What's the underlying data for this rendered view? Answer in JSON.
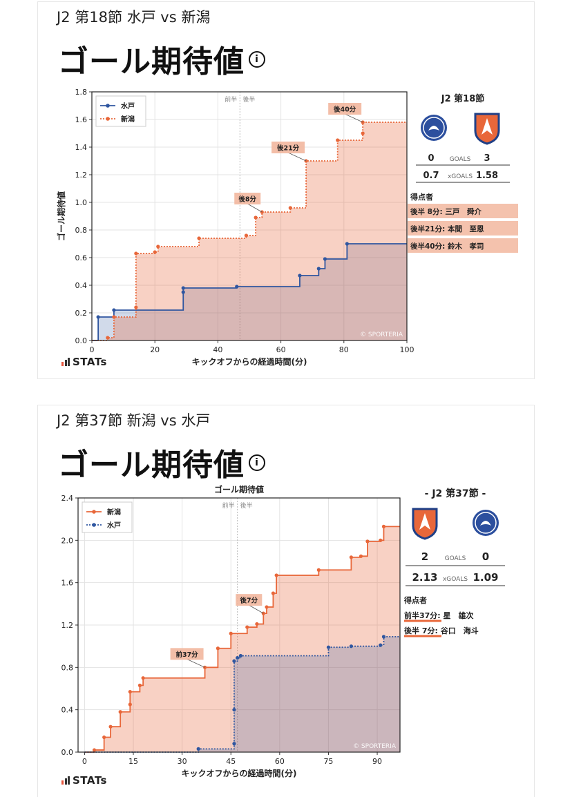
{
  "matches": [
    {
      "match_title": "J2 第18節 水戸 vs 新潟",
      "heading": "ゴール期待値",
      "panel": {
        "round": "J2 第18節",
        "home_goals": "0",
        "away_goals": "3",
        "goals_label": "GOALS",
        "home_xg": "0.7",
        "away_xg": "1.58",
        "xg_label": "xGOALS",
        "scorers_title": "得点者",
        "scorers": [
          "後半  8分: 三戸　舜介",
          "後半21分: 本間　至恩",
          "後半40分: 鈴木　孝司"
        ]
      },
      "stats_label": "STATs",
      "chart_data": {
        "type": "area",
        "title": "",
        "xlabel": "キックオフからの経過時間(分)",
        "ylabel": "ゴール期待値",
        "xlim": [
          0,
          100
        ],
        "ylim": [
          0,
          1.8
        ],
        "xticks": [
          "0",
          "20",
          "40",
          "60",
          "80",
          "100"
        ],
        "yticks": [
          "0.0",
          "0.2",
          "0.4",
          "0.6",
          "0.8",
          "1.0",
          "1.2",
          "1.4",
          "1.6",
          "1.8"
        ],
        "half_labels": [
          "前半",
          "後半"
        ],
        "half_line_x": 47,
        "watermark": "© SPORTERIA",
        "legend_position": "top-left",
        "series": [
          {
            "name": "水戸",
            "color": "#2f56a0",
            "style": "solid",
            "points": [
              [
                2,
                0.17
              ],
              [
                7,
                0.22
              ],
              [
                29,
                0.35
              ],
              [
                29,
                0.38
              ],
              [
                46,
                0.39
              ],
              [
                66,
                0.47
              ],
              [
                72,
                0.52
              ],
              [
                74,
                0.59
              ],
              [
                81,
                0.7
              ]
            ]
          },
          {
            "name": "新潟",
            "color": "#e8673a",
            "style": "dotted",
            "points": [
              [
                5,
                0.02
              ],
              [
                7,
                0.17
              ],
              [
                14,
                0.24
              ],
              [
                14,
                0.63
              ],
              [
                20,
                0.64
              ],
              [
                21,
                0.68
              ],
              [
                34,
                0.74
              ],
              [
                49,
                0.76
              ],
              [
                52,
                0.89
              ],
              [
                54,
                0.93
              ],
              [
                63,
                0.96
              ],
              [
                68,
                1.3
              ],
              [
                78,
                1.45
              ],
              [
                86,
                1.5
              ],
              [
                86,
                1.58
              ]
            ]
          }
        ],
        "annotations": [
          {
            "text": "後8分",
            "x": 54,
            "y": 0.93
          },
          {
            "text": "後21分",
            "x": 68,
            "y": 1.3
          },
          {
            "text": "後40分",
            "x": 86,
            "y": 1.58
          }
        ],
        "x_end": 100
      }
    },
    {
      "match_title": "J2 第37節 新潟 vs 水戸",
      "heading": "ゴール期待値",
      "panel": {
        "round": "- J2 第37節 -",
        "home_goals": "2",
        "away_goals": "0",
        "goals_label": "GOALS",
        "home_xg": "2.13",
        "away_xg": "1.09",
        "xg_label": "xGOALS",
        "scorers_title": "得点者",
        "scorers": [
          "前半37分: 星　雄次",
          "後半  7分: 谷口　海斗"
        ]
      },
      "stats_label": "STATs",
      "chart_data": {
        "type": "area",
        "title": "ゴール期待値",
        "xlabel": "キックオフからの経過時間(分)",
        "ylabel": "",
        "xlim": [
          -2,
          97
        ],
        "ylim": [
          0,
          2.4
        ],
        "xticks": [
          "0",
          "15",
          "30",
          "45",
          "60",
          "75",
          "90"
        ],
        "yticks": [
          "0.0",
          "0.4",
          "0.8",
          "1.2",
          "1.6",
          "2.0",
          "2.4"
        ],
        "half_labels": [
          "前半",
          "後半"
        ],
        "half_line_x": 47,
        "watermark": "© SPORTERIA",
        "legend_position": "top-left",
        "series": [
          {
            "name": "新潟",
            "color": "#e8673a",
            "style": "solid",
            "points": [
              [
                3,
                0.02
              ],
              [
                6,
                0.14
              ],
              [
                8,
                0.24
              ],
              [
                11,
                0.38
              ],
              [
                14,
                0.45
              ],
              [
                14,
                0.57
              ],
              [
                17,
                0.63
              ],
              [
                18,
                0.7
              ],
              [
                37,
                0.8
              ],
              [
                41,
                0.98
              ],
              [
                45,
                1.12
              ],
              [
                50,
                1.18
              ],
              [
                53,
                1.21
              ],
              [
                55,
                1.31
              ],
              [
                56,
                1.37
              ],
              [
                58,
                1.5
              ],
              [
                59,
                1.67
              ],
              [
                72,
                1.72
              ],
              [
                82,
                1.84
              ],
              [
                85,
                1.85
              ],
              [
                87,
                1.99
              ],
              [
                91,
                2.0
              ],
              [
                92,
                2.13
              ]
            ]
          },
          {
            "name": "水戸",
            "color": "#2f56a0",
            "style": "dotted",
            "points": [
              [
                35,
                0.03
              ],
              [
                46,
                0.08
              ],
              [
                46,
                0.4
              ],
              [
                46,
                0.86
              ],
              [
                47,
                0.89
              ],
              [
                48,
                0.91
              ],
              [
                75,
                0.99
              ],
              [
                82,
                1.0
              ],
              [
                91,
                1.01
              ],
              [
                92,
                1.09
              ]
            ]
          }
        ],
        "annotations": [
          {
            "text": "前37分",
            "x": 37,
            "y": 0.8
          },
          {
            "text": "後7分",
            "x": 55,
            "y": 1.31
          }
        ],
        "x_end": 97
      }
    }
  ]
}
